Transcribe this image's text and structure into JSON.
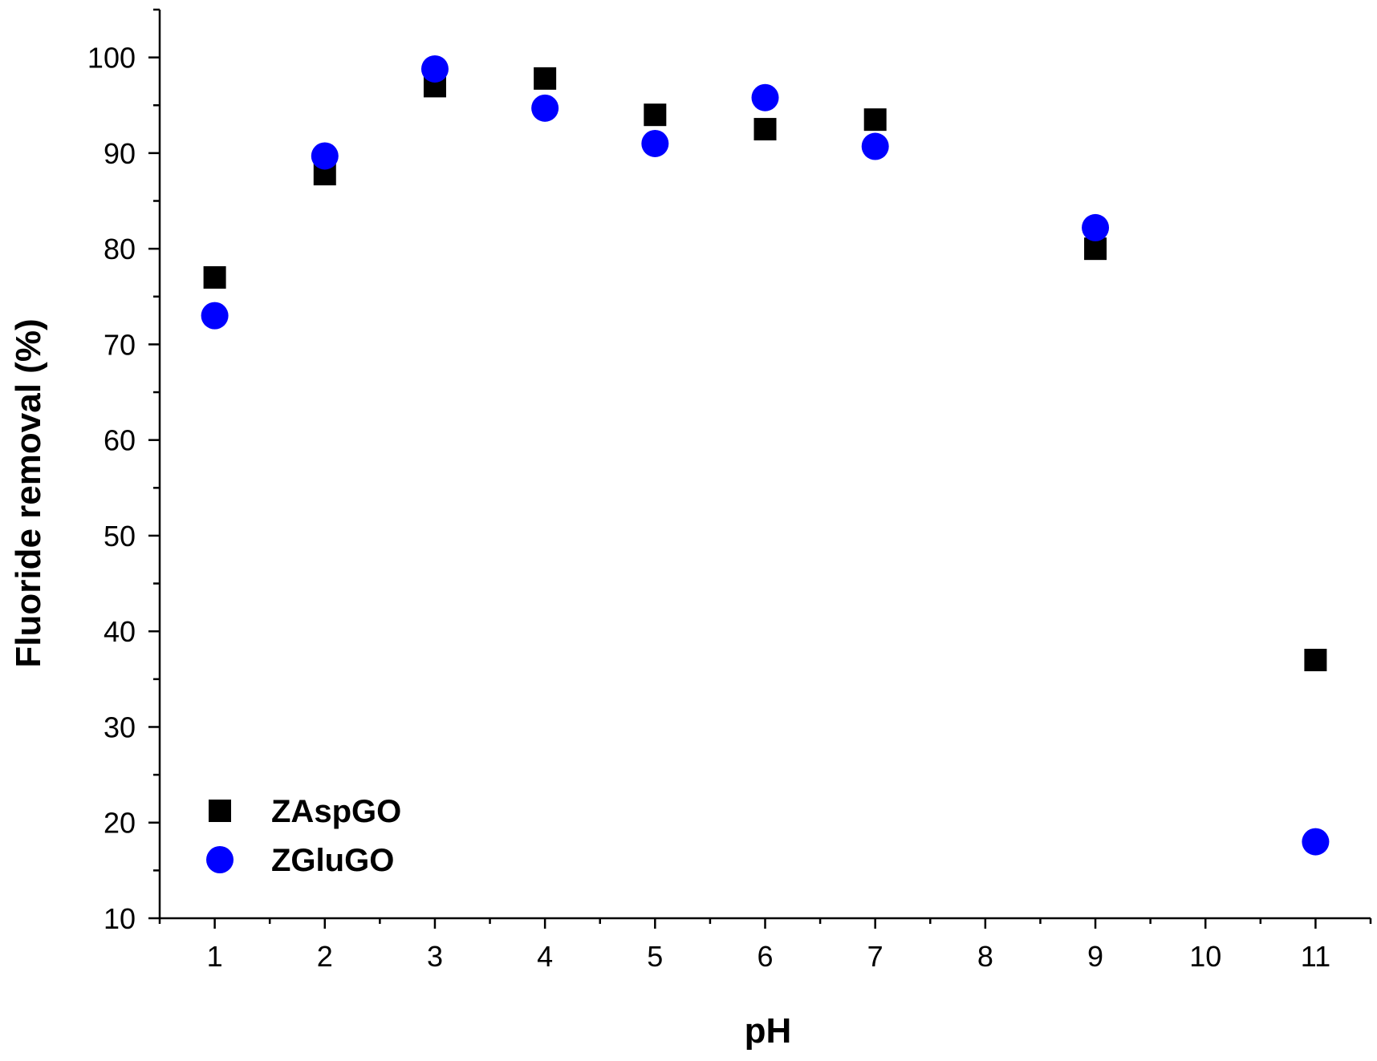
{
  "chart_data": {
    "type": "scatter",
    "title": "",
    "xlabel": "pH",
    "ylabel": "Fluoride removal (%)",
    "xlim": [
      0.5,
      11.5
    ],
    "ylim": [
      10,
      105
    ],
    "xticks": [
      1,
      2,
      3,
      4,
      5,
      6,
      7,
      8,
      9,
      10,
      11
    ],
    "yticks": [
      10,
      20,
      30,
      40,
      50,
      60,
      70,
      80,
      90,
      100
    ],
    "legend_position": "bottom-left",
    "series": [
      {
        "name": "ZAspGO",
        "marker": "square",
        "color": "#000000",
        "points": [
          {
            "x": 1,
            "y": 77.0
          },
          {
            "x": 2,
            "y": 87.8
          },
          {
            "x": 3,
            "y": 97.0
          },
          {
            "x": 4,
            "y": 97.8
          },
          {
            "x": 5,
            "y": 94.0
          },
          {
            "x": 6,
            "y": 92.5
          },
          {
            "x": 7,
            "y": 93.5
          },
          {
            "x": 9,
            "y": 80.0
          },
          {
            "x": 11,
            "y": 37.0
          }
        ]
      },
      {
        "name": "ZGluGO",
        "marker": "circle",
        "color": "#0000ff",
        "points": [
          {
            "x": 1,
            "y": 73.0
          },
          {
            "x": 2,
            "y": 89.7
          },
          {
            "x": 3,
            "y": 98.8
          },
          {
            "x": 4,
            "y": 94.7
          },
          {
            "x": 5,
            "y": 91.0
          },
          {
            "x": 6,
            "y": 95.8
          },
          {
            "x": 7,
            "y": 90.7
          },
          {
            "x": 9,
            "y": 82.2
          },
          {
            "x": 11,
            "y": 18.0
          }
        ]
      }
    ]
  }
}
